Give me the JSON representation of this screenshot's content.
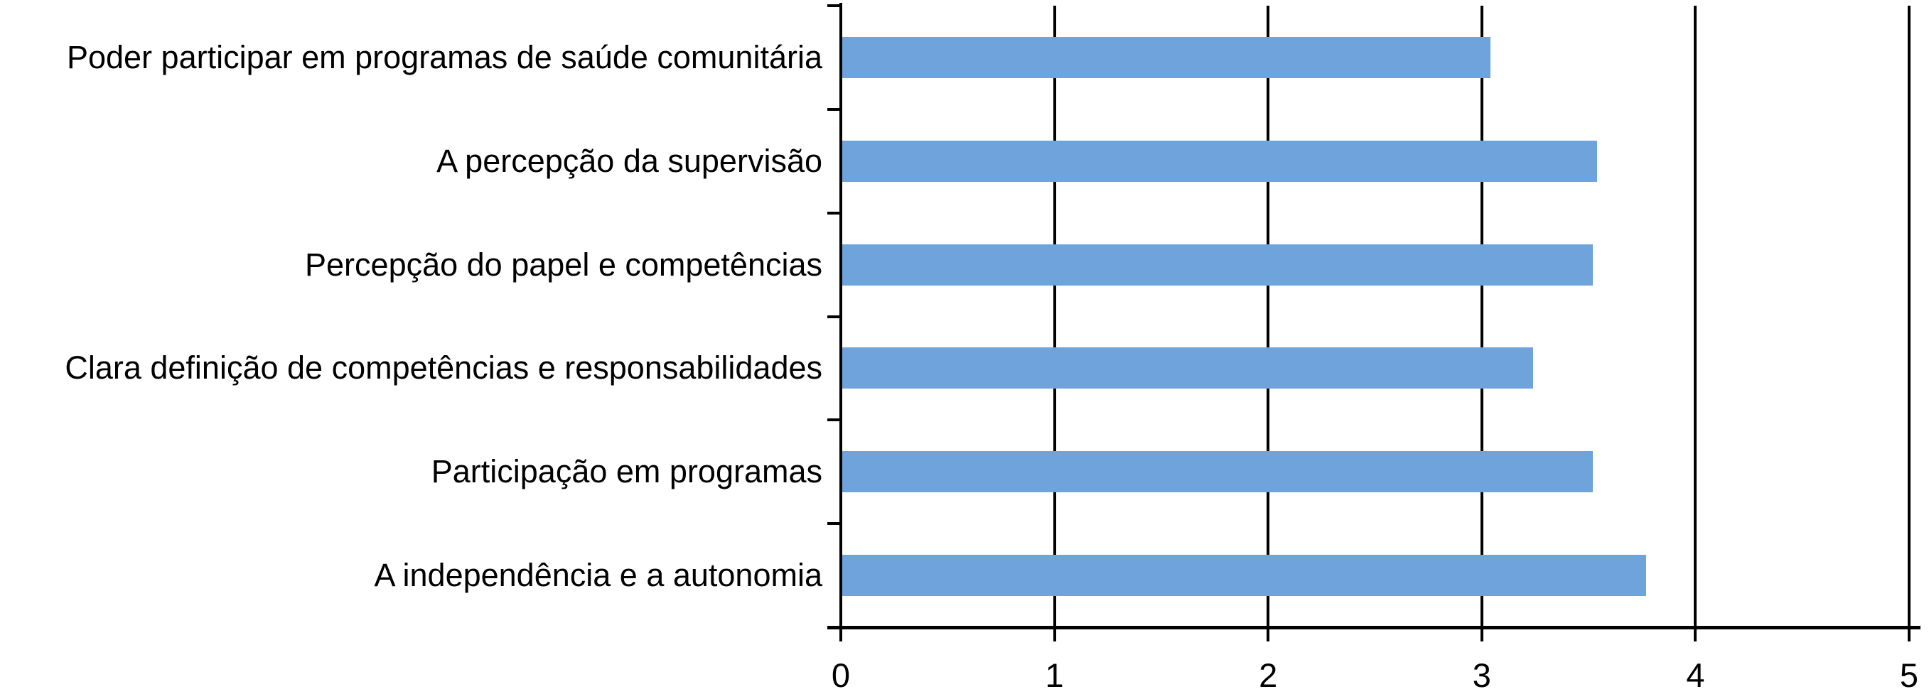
{
  "chart_data": {
    "type": "bar",
    "orientation": "horizontal",
    "title": "",
    "xlabel": "",
    "ylabel": "",
    "categories": [
      "Poder participar em programas de saúde comunitária",
      "A percepção da supervisão",
      "Percepção do papel e competências",
      "Clara definição de competências e responsabilidades",
      "Participação em programas",
      "A independência e a autonomia"
    ],
    "values": [
      3.04,
      3.54,
      3.52,
      3.24,
      3.52,
      3.77
    ],
    "xlim": [
      0,
      5
    ],
    "x_ticks": [
      0,
      1,
      2,
      3,
      4,
      5
    ],
    "grid": "vertical gridlines at every integer tick, full plot height",
    "legend": "none",
    "bar_color": "#6FA3DC",
    "axis_color": "#000000",
    "background_color": "#FFFFFF"
  }
}
